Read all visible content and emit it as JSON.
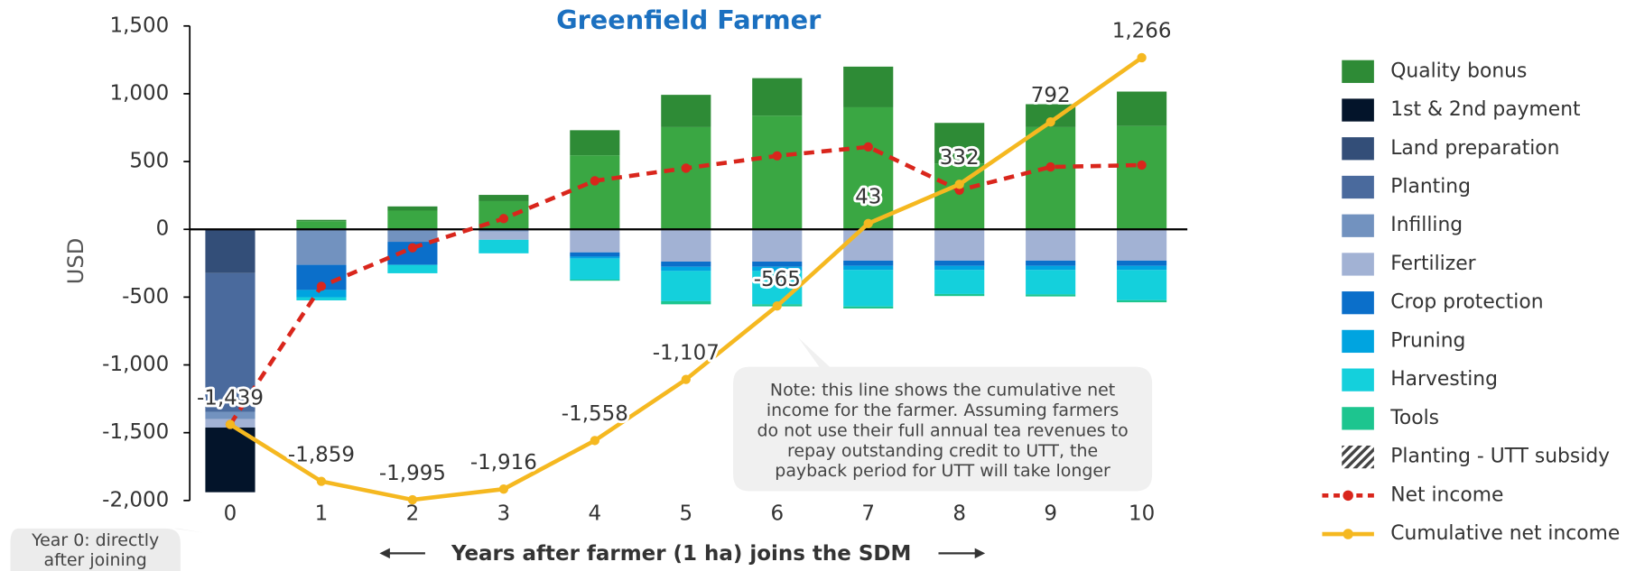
{
  "chart_data": {
    "type": "bar",
    "title": "Greenfield Farmer",
    "y_label": "USD",
    "x_label": "Years after farmer (1 ha) joins the SDM",
    "categories": [
      "0",
      "1",
      "2",
      "3",
      "4",
      "5",
      "6",
      "7",
      "8",
      "9",
      "10"
    ],
    "ylim": [
      -2000,
      1500
    ],
    "yticks": [
      {
        "value": 1500,
        "label": "1,500"
      },
      {
        "value": 1000,
        "label": "1,000"
      },
      500,
      0,
      -500,
      {
        "value": -1000,
        "label": "-1,000"
      },
      {
        "value": -1500,
        "label": "-1,500"
      },
      {
        "value": -2000,
        "label": "-2,000"
      }
    ],
    "series": [
      {
        "color": "#3aa743",
        "values": [
          0,
          60,
          138,
          208,
          546,
          754,
          838,
          900,
          485,
          754,
          762
        ]
      },
      {
        "name": "Quality bonus",
        "color": "#2e8b36",
        "values": [
          0,
          10,
          31,
          46,
          185,
          238,
          277,
          300,
          300,
          169,
          254
        ]
      },
      {
        "name": "1st & 2nd payment",
        "color": "#03142a",
        "stack": "base",
        "values": [
          -477,
          0,
          0,
          0,
          0,
          0,
          0,
          0,
          0,
          0,
          0
        ]
      },
      {
        "name": "Land preparation",
        "color": "#334e78",
        "values": [
          -323,
          0,
          0,
          0,
          0,
          0,
          0,
          0,
          0,
          0,
          0
        ]
      },
      {
        "name": "Planting",
        "color": "#4a6a9d",
        "values": [
          -1023,
          0,
          0,
          0,
          0,
          0,
          0,
          0,
          0,
          0,
          0
        ]
      },
      {
        "name": "Infilling",
        "color": "#7292bf",
        "values": [
          -54,
          -262,
          -92,
          -15,
          0,
          0,
          0,
          0,
          0,
          0,
          0
        ]
      },
      {
        "name": "Fertilizer",
        "color": "#a2b2d4",
        "values": [
          -62,
          0,
          0,
          -62,
          -170,
          -238,
          -238,
          -231,
          -231,
          -231,
          -231
        ]
      },
      {
        "name": "Crop protection",
        "color": "#0b6fca",
        "values": [
          0,
          -185,
          -170,
          0,
          -31,
          -38,
          -38,
          -38,
          -38,
          -38,
          -38
        ]
      },
      {
        "name": "Pruning",
        "color": "#00a4e0",
        "values": [
          0,
          -54,
          0,
          0,
          -15,
          -31,
          -31,
          -31,
          -31,
          -31,
          -31
        ]
      },
      {
        "name": "Harvesting",
        "color": "#14d0dc",
        "values": [
          0,
          -23,
          -62,
          -100,
          -155,
          -223,
          -246,
          -269,
          -177,
          -180,
          -223
        ]
      },
      {
        "name": "Tools",
        "color": "#1dc58f",
        "values": [
          0,
          0,
          0,
          0,
          -8,
          -23,
          -15,
          -15,
          -15,
          -15,
          -15
        ]
      },
      {
        "name": "Planting - UTT subsidy",
        "color": "#444444",
        "pattern": "hatch",
        "values": [
          0,
          0,
          0,
          0,
          0,
          0,
          0,
          0,
          0,
          0,
          0
        ]
      },
      {
        "name": "Net income",
        "kind": "line",
        "dash": "dotted",
        "color": "#d9261c",
        "values": [
          -1439,
          -420,
          -136,
          79,
          358,
          451,
          542,
          608,
          289,
          460,
          474
        ]
      },
      {
        "name": "Cumulative net income",
        "kind": "line",
        "color": "#f5b820",
        "values": [
          -1439,
          -1859,
          -1995,
          -1916,
          -1558,
          -1107,
          -565,
          43,
          332,
          792,
          1266
        ],
        "value_labels": [
          "-1,439",
          "-1,859",
          "-1,995",
          "-1,916",
          "-1,558",
          "-1,107",
          "-565",
          "43",
          "332",
          "792",
          "1,266"
        ]
      }
    ],
    "note": [
      "Note: this line shows the cumulative net",
      "income for the farmer. Assuming farmers",
      "do not use their full annual tea revenues to",
      "repay outstanding credit to UTT, the",
      "payback period for UTT will take longer"
    ],
    "callout": [
      "Year 0: directly",
      "after joining"
    ]
  }
}
